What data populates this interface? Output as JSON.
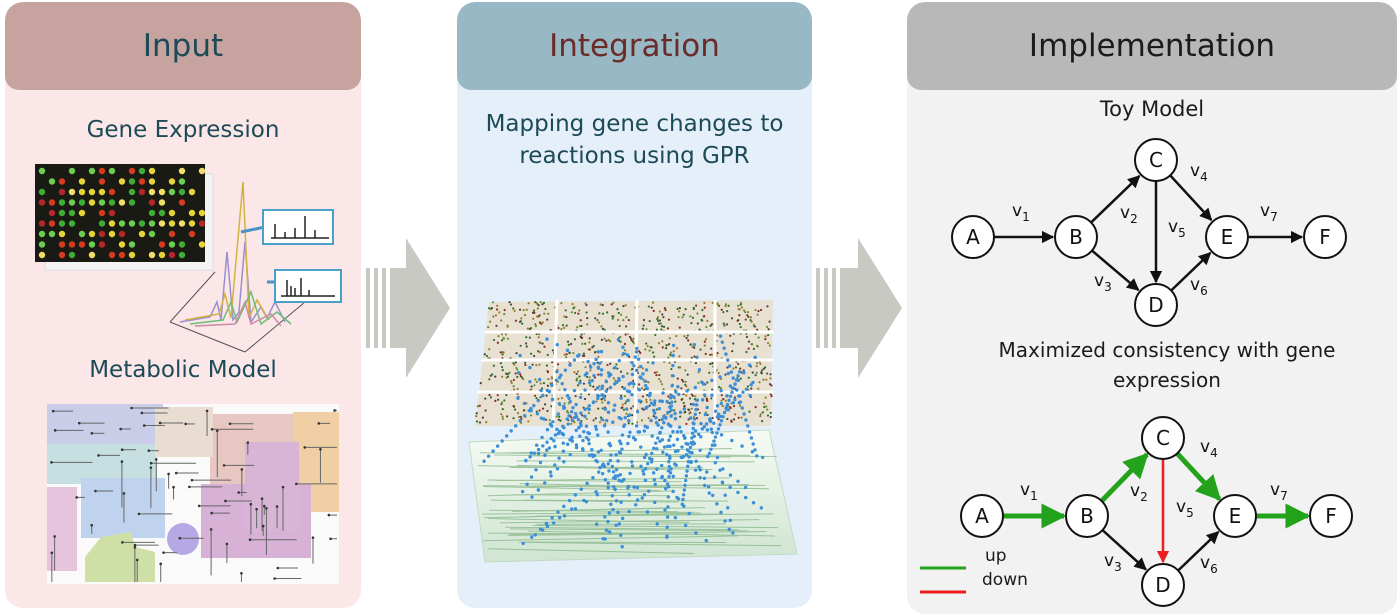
{
  "panels": {
    "input": {
      "title": "Input",
      "gene_expression_label": "Gene Expression",
      "metabolic_model_label": "Metabolic Model"
    },
    "integration": {
      "title": "Integration",
      "description_line1": "Mapping gene changes to",
      "description_line2": "reactions using GPR"
    },
    "implementation": {
      "title": "Implementation",
      "toy_model_label": "Toy Model",
      "consistency_line1": "Maximized consistency with gene",
      "consistency_line2": "expression"
    }
  },
  "network": {
    "nodes": [
      "A",
      "B",
      "C",
      "D",
      "E",
      "F"
    ],
    "edges": [
      {
        "id": "v1",
        "label": "v",
        "sub": "1",
        "from": "A",
        "to": "B",
        "regulation": "up"
      },
      {
        "id": "v2",
        "label": "v",
        "sub": "2",
        "from": "B",
        "to": "C",
        "regulation": "up"
      },
      {
        "id": "v3",
        "label": "v",
        "sub": "3",
        "from": "B",
        "to": "D",
        "regulation": "none"
      },
      {
        "id": "v4",
        "label": "v",
        "sub": "4",
        "from": "C",
        "to": "E",
        "regulation": "up"
      },
      {
        "id": "v5",
        "label": "v",
        "sub": "5",
        "from": "C",
        "to": "D",
        "regulation": "down"
      },
      {
        "id": "v6",
        "label": "v",
        "sub": "6",
        "from": "D",
        "to": "E",
        "regulation": "none"
      },
      {
        "id": "v7",
        "label": "v",
        "sub": "7",
        "from": "E",
        "to": "F",
        "regulation": "up"
      }
    ]
  },
  "legend": {
    "up_label": "up",
    "down_label": "down",
    "up_color": "#22a31b",
    "down_color": "#ee1c1c"
  },
  "colors": {
    "input_bg": "#fbe6e8",
    "input_header": "#c6a39f",
    "integration_bg": "#e4effa",
    "integration_header": "#97b8c4",
    "implementation_bg": "#f2f2f2",
    "implementation_header": "#b8b8b8",
    "arrow_gray": "#c9c9c4"
  }
}
